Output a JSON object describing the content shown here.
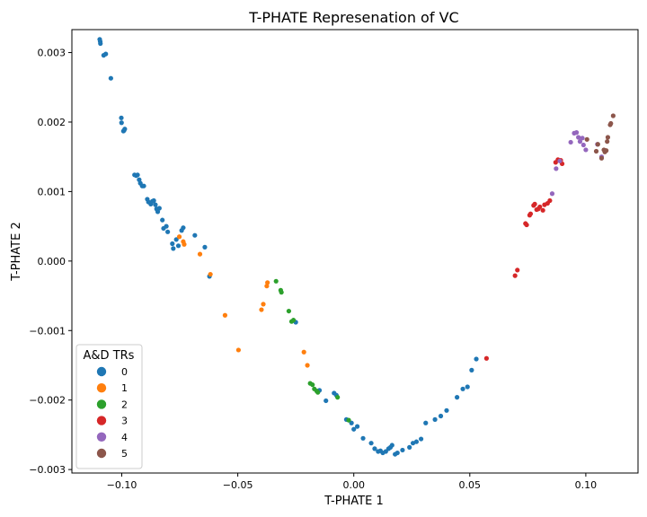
{
  "chart_data": {
    "type": "scatter",
    "title": "T-PHATE Represenation of VC",
    "xlabel": "T-PHATE 1",
    "ylabel": "T-PHATE 2",
    "xlim": [
      -0.1215,
      0.1225
    ],
    "ylim": [
      -0.00305,
      0.00333
    ],
    "xticks": [
      -0.1,
      -0.05,
      0.0,
      0.05,
      0.1
    ],
    "xtick_labels": [
      "−0.10",
      "−0.05",
      "0.00",
      "0.05",
      "0.10"
    ],
    "yticks": [
      -0.003,
      -0.002,
      -0.001,
      0.0,
      0.001,
      0.002,
      0.003
    ],
    "ytick_labels": [
      "−0.003",
      "−0.002",
      "−0.001",
      "0.000",
      "0.001",
      "0.002",
      "0.003"
    ],
    "grid": false,
    "legend": {
      "title": "A&D TRs",
      "placement": "lower-left",
      "entries": [
        "0",
        "1",
        "2",
        "3",
        "4",
        "5"
      ]
    },
    "series": [
      {
        "name": "0",
        "color": "#1f77b4",
        "points": [
          [
            -0.1095,
            0.00319
          ],
          [
            -0.1093,
            0.00316
          ],
          [
            -0.1092,
            0.00313
          ],
          [
            -0.1078,
            0.00296
          ],
          [
            -0.1069,
            0.00298
          ],
          [
            -0.1047,
            0.00263
          ],
          [
            -0.1002,
            0.00206
          ],
          [
            -0.1001,
            0.00199
          ],
          [
            -0.0993,
            0.00187
          ],
          [
            -0.099,
            0.00188
          ],
          [
            -0.0987,
            0.0019
          ],
          [
            -0.0945,
            0.00124
          ],
          [
            -0.0938,
            0.00123
          ],
          [
            -0.0932,
            0.00124
          ],
          [
            -0.0925,
            0.00117
          ],
          [
            -0.092,
            0.00112
          ],
          [
            -0.0912,
            0.00108
          ],
          [
            -0.0905,
            0.00108
          ],
          [
            -0.089,
            0.00089
          ],
          [
            -0.0885,
            0.00085
          ],
          [
            -0.0875,
            0.00082
          ],
          [
            -0.0868,
            0.00086
          ],
          [
            -0.0862,
            0.00087
          ],
          [
            -0.0855,
            0.00081
          ],
          [
            -0.085,
            0.00075
          ],
          [
            -0.0845,
            0.00071
          ],
          [
            -0.0838,
            0.00076
          ],
          [
            -0.0825,
            0.00059
          ],
          [
            -0.082,
            0.00047
          ],
          [
            -0.0808,
            0.0005
          ],
          [
            -0.0802,
            0.00042
          ],
          [
            -0.0782,
            0.00025
          ],
          [
            -0.0778,
            0.00018
          ],
          [
            -0.0765,
            0.00031
          ],
          [
            -0.0756,
            0.00022
          ],
          [
            -0.0742,
            0.00044
          ],
          [
            -0.0735,
            0.00048
          ],
          [
            -0.0685,
            0.00037
          ],
          [
            -0.0642,
            0.0002
          ],
          [
            -0.0622,
            -0.00022
          ],
          [
            -0.025,
            -0.00088
          ],
          [
            -0.0148,
            -0.00186
          ],
          [
            -0.012,
            -0.00201
          ],
          [
            -0.0085,
            -0.0019
          ],
          [
            -0.0075,
            -0.00193
          ],
          [
            -0.0032,
            -0.00228
          ],
          [
            -0.001,
            -0.00233
          ],
          [
            0.0,
            -0.00242
          ],
          [
            0.0015,
            -0.00238
          ],
          [
            0.004,
            -0.00255
          ],
          [
            0.0075,
            -0.00262
          ],
          [
            0.009,
            -0.0027
          ],
          [
            0.0105,
            -0.00274
          ],
          [
            0.0115,
            -0.00273
          ],
          [
            0.0125,
            -0.00276
          ],
          [
            0.0138,
            -0.00274
          ],
          [
            0.015,
            -0.0027
          ],
          [
            0.0158,
            -0.00268
          ],
          [
            0.0165,
            -0.00265
          ],
          [
            0.0178,
            -0.00278
          ],
          [
            0.0188,
            -0.00276
          ],
          [
            0.021,
            -0.00272
          ],
          [
            0.024,
            -0.00268
          ],
          [
            0.0255,
            -0.00262
          ],
          [
            0.027,
            -0.0026
          ],
          [
            0.029,
            -0.00256
          ],
          [
            0.031,
            -0.00233
          ],
          [
            0.035,
            -0.00228
          ],
          [
            0.0375,
            -0.00223
          ],
          [
            0.04,
            -0.00215
          ],
          [
            0.0445,
            -0.00196
          ],
          [
            0.047,
            -0.00184
          ],
          [
            0.049,
            -0.00181
          ],
          [
            0.0508,
            -0.00157
          ],
          [
            0.0528,
            -0.00141
          ]
        ]
      },
      {
        "name": "1",
        "color": "#ff7f0e",
        "points": [
          [
            -0.0752,
            0.00035
          ],
          [
            -0.0735,
            0.00028
          ],
          [
            -0.0731,
            0.00024
          ],
          [
            -0.0663,
            0.0001
          ],
          [
            -0.0618,
            -0.00019
          ],
          [
            -0.0555,
            -0.00078
          ],
          [
            -0.0497,
            -0.00128
          ],
          [
            -0.0398,
            -0.0007
          ],
          [
            -0.039,
            -0.00062
          ],
          [
            -0.0375,
            -0.00036
          ],
          [
            -0.0372,
            -0.00031
          ],
          [
            -0.0215,
            -0.00131
          ],
          [
            -0.02,
            -0.0015
          ]
        ]
      },
      {
        "name": "2",
        "color": "#2ca02c",
        "points": [
          [
            -0.0335,
            -0.00029
          ],
          [
            -0.0315,
            -0.00042
          ],
          [
            -0.0312,
            -0.00045
          ],
          [
            -0.028,
            -0.00072
          ],
          [
            -0.0268,
            -0.00087
          ],
          [
            -0.026,
            -0.00085
          ],
          [
            -0.0188,
            -0.00176
          ],
          [
            -0.0178,
            -0.00178
          ],
          [
            -0.017,
            -0.00184
          ],
          [
            -0.016,
            -0.00187
          ],
          [
            -0.0155,
            -0.00189
          ],
          [
            -0.007,
            -0.00196
          ],
          [
            -0.0022,
            -0.00229
          ]
        ]
      },
      {
        "name": "3",
        "color": "#d62728",
        "points": [
          [
            0.0572,
            -0.0014
          ],
          [
            0.0695,
            -0.00021
          ],
          [
            0.0705,
            -0.00013
          ],
          [
            0.074,
            0.00054
          ],
          [
            0.0745,
            0.00052
          ],
          [
            0.0758,
            0.00066
          ],
          [
            0.0762,
            0.00068
          ],
          [
            0.0775,
            0.0008
          ],
          [
            0.078,
            0.00082
          ],
          [
            0.0788,
            0.00074
          ],
          [
            0.0795,
            0.00075
          ],
          [
            0.0802,
            0.00078
          ],
          [
            0.0815,
            0.00073
          ],
          [
            0.0822,
            0.00081
          ],
          [
            0.0835,
            0.00083
          ],
          [
            0.0845,
            0.00087
          ],
          [
            0.087,
            0.00142
          ],
          [
            0.088,
            0.00146
          ],
          [
            0.0892,
            0.00145
          ],
          [
            0.0898,
            0.0014
          ]
        ]
      },
      {
        "name": "4",
        "color": "#9467bd",
        "points": [
          [
            0.0855,
            0.00097
          ],
          [
            0.0872,
            0.00133
          ],
          [
            0.0888,
            0.00144
          ],
          [
            0.0935,
            0.00171
          ],
          [
            0.095,
            0.00184
          ],
          [
            0.096,
            0.00185
          ],
          [
            0.0968,
            0.00178
          ],
          [
            0.0975,
            0.00172
          ],
          [
            0.0985,
            0.00177
          ],
          [
            0.099,
            0.00167
          ],
          [
            0.1,
            0.0016
          ],
          [
            0.105,
            0.00168
          ],
          [
            0.1068,
            0.0015
          ]
        ]
      },
      {
        "name": "5",
        "color": "#8c564b",
        "points": [
          [
            0.1005,
            0.00175
          ],
          [
            0.1045,
            0.00158
          ],
          [
            0.1052,
            0.00168
          ],
          [
            0.1068,
            0.00148
          ],
          [
            0.1078,
            0.0016
          ],
          [
            0.1082,
            0.00157
          ],
          [
            0.1088,
            0.00159
          ],
          [
            0.1092,
            0.00172
          ],
          [
            0.1095,
            0.00178
          ],
          [
            0.1105,
            0.00196
          ],
          [
            0.1108,
            0.00198
          ],
          [
            0.1118,
            0.00209
          ]
        ]
      }
    ]
  }
}
